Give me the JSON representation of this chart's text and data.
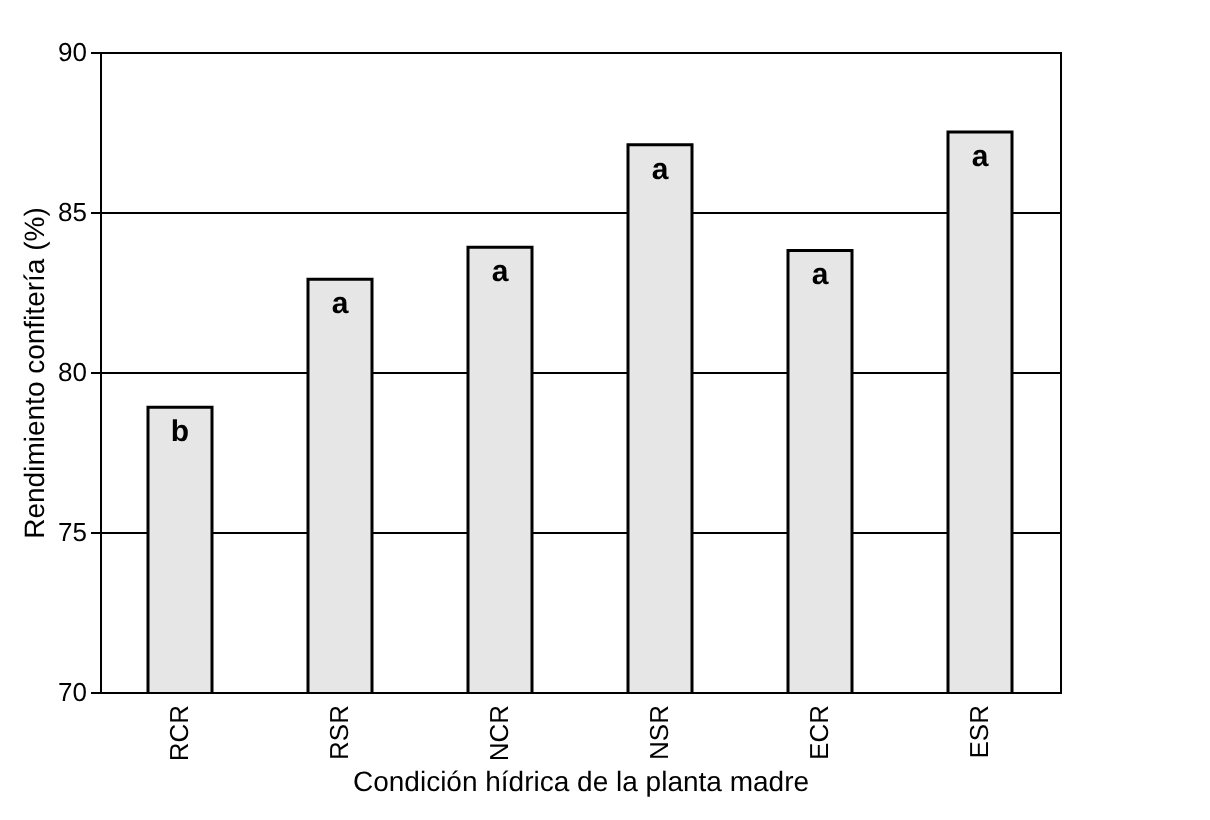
{
  "chart_data": {
    "type": "bar",
    "xlabel": "Condición hídrica de la planta madre",
    "ylabel": "Rendimiento confitería (%)",
    "categories": [
      "RCR",
      "RSR",
      "NCR",
      "NSR",
      "ECR",
      "ESR"
    ],
    "values": [
      78.9,
      82.9,
      83.9,
      87.1,
      83.8,
      87.5
    ],
    "color": "#e6e6e6",
    "ylim": [
      70,
      90
    ],
    "yticks": [
      70,
      75,
      80,
      85,
      90
    ],
    "grid": "y",
    "annotations": [
      {
        "text": "b",
        "x": "RCR",
        "y": 78.9
      },
      {
        "text": "a",
        "x": "RSR",
        "y": 82.9
      },
      {
        "text": "a",
        "x": "NCR",
        "y": 83.9
      },
      {
        "text": "a",
        "x": "NSR",
        "y": 87.1
      },
      {
        "text": "a",
        "x": "ECR",
        "y": 83.8
      },
      {
        "text": "a",
        "x": "ESR",
        "y": 87.5
      }
    ]
  }
}
